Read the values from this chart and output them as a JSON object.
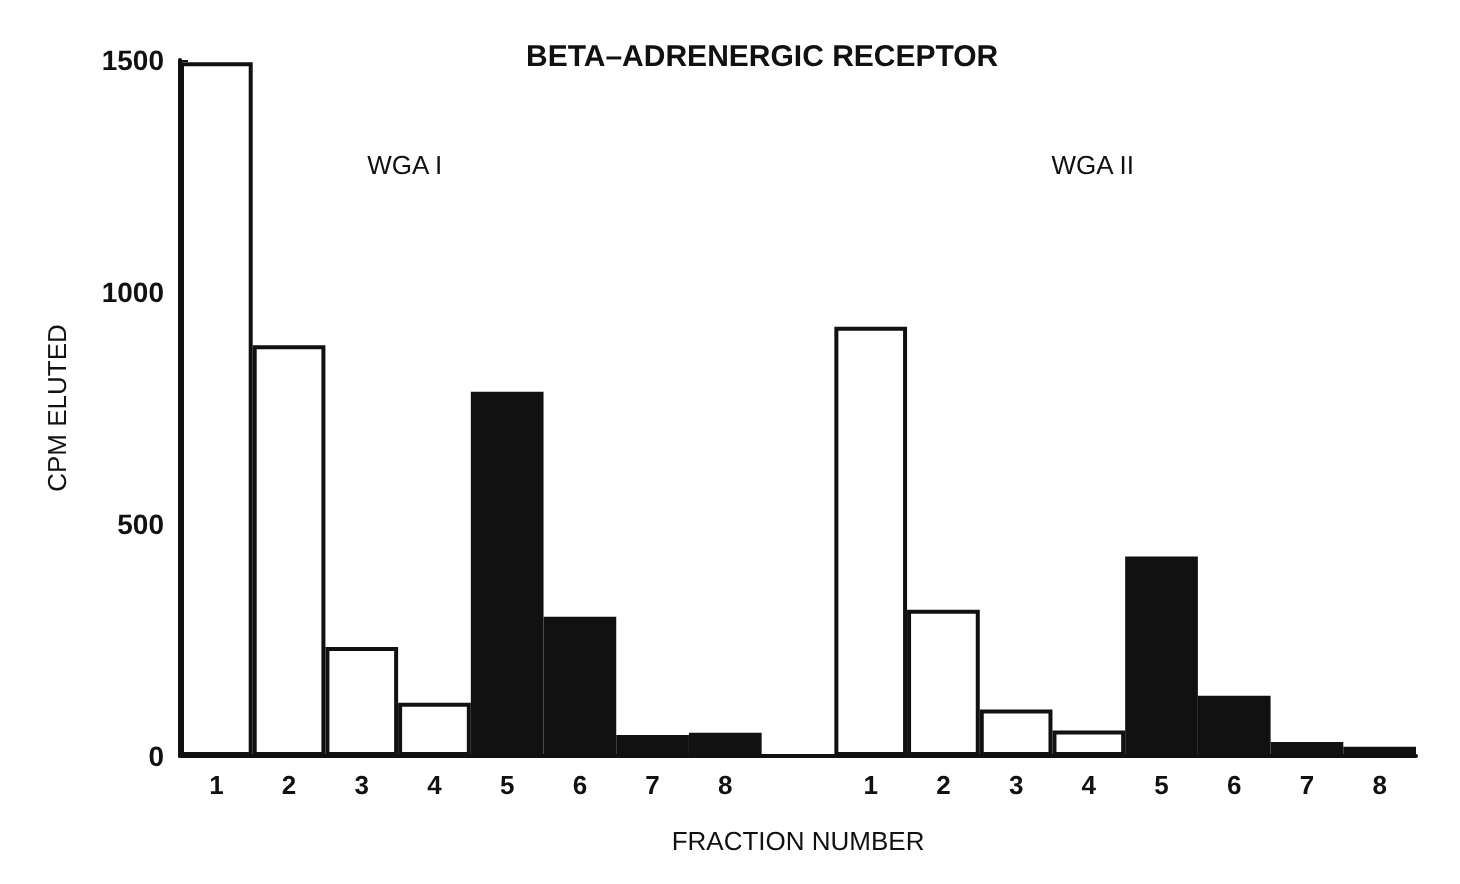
{
  "chart_data": {
    "type": "bar",
    "title": "BETA–ADRENERGIC RECEPTOR",
    "xlabel": "FRACTION NUMBER",
    "ylabel": "CPM ELUTED",
    "categories": [
      "1",
      "2",
      "3",
      "4",
      "5",
      "6",
      "7",
      "8",
      null,
      "1",
      "2",
      "3",
      "4",
      "5",
      "6",
      "7",
      "8"
    ],
    "values": [
      1495,
      885,
      235,
      115,
      785,
      300,
      45,
      50,
      null,
      925,
      315,
      100,
      55,
      430,
      130,
      30,
      20
    ],
    "colors": [
      "#ffffff",
      "#ffffff",
      "#ffffff",
      "#ffffff",
      "#111111",
      "#111111",
      "#111111",
      "#111111",
      null,
      "#ffffff",
      "#ffffff",
      "#ffffff",
      "#ffffff",
      "#111111",
      "#111111",
      "#111111",
      "#111111"
    ],
    "annotations": [
      "WGA I",
      "WGA II"
    ],
    "ylim": [
      0,
      1500
    ],
    "yticks": [
      0,
      500,
      1000,
      1500
    ]
  }
}
